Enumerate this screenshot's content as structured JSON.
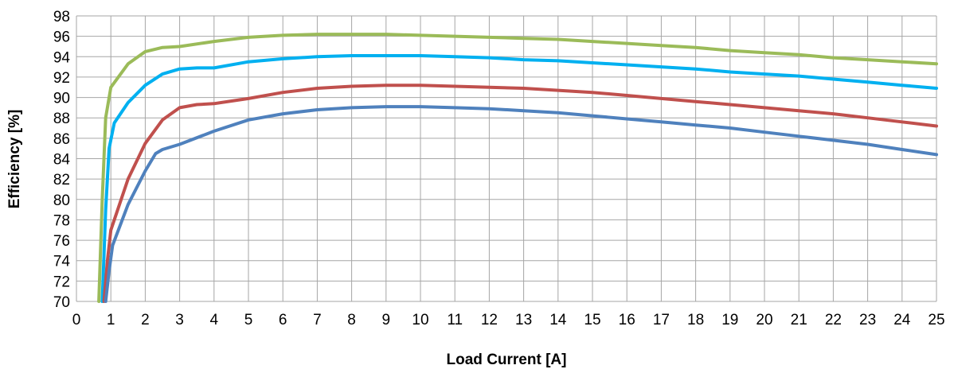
{
  "chart_data": {
    "type": "line",
    "title": "",
    "xlabel": "Load Current [A]",
    "ylabel": "Efficiency [%]",
    "xlim": [
      0,
      25
    ],
    "ylim": [
      70,
      98
    ],
    "x_ticks": [
      0,
      1,
      2,
      3,
      4,
      5,
      6,
      7,
      8,
      9,
      10,
      11,
      12,
      13,
      14,
      15,
      16,
      17,
      18,
      19,
      20,
      21,
      22,
      23,
      24,
      25
    ],
    "y_ticks": [
      70,
      72,
      74,
      76,
      78,
      80,
      82,
      84,
      86,
      88,
      90,
      92,
      94,
      96,
      98
    ],
    "grid": true,
    "legend": "none",
    "series": [
      {
        "color": "#9bbb59",
        "points": [
          [
            0.65,
            70
          ],
          [
            0.75,
            80
          ],
          [
            0.85,
            88
          ],
          [
            1,
            91
          ],
          [
            1.5,
            93.3
          ],
          [
            2,
            94.5
          ],
          [
            2.5,
            94.9
          ],
          [
            3,
            95
          ],
          [
            4,
            95.5
          ],
          [
            5,
            95.9
          ],
          [
            6,
            96.1
          ],
          [
            7,
            96.2
          ],
          [
            8,
            96.2
          ],
          [
            9,
            96.2
          ],
          [
            10,
            96.1
          ],
          [
            11,
            96
          ],
          [
            12,
            95.9
          ],
          [
            13,
            95.8
          ],
          [
            14,
            95.7
          ],
          [
            15,
            95.5
          ],
          [
            16,
            95.3
          ],
          [
            17,
            95.1
          ],
          [
            18,
            94.9
          ],
          [
            19,
            94.6
          ],
          [
            20,
            94.4
          ],
          [
            21,
            94.2
          ],
          [
            22,
            93.9
          ],
          [
            23,
            93.7
          ],
          [
            24,
            93.5
          ],
          [
            25,
            93.3
          ]
        ]
      },
      {
        "color": "#00b0f0",
        "points": [
          [
            0.75,
            70
          ],
          [
            0.85,
            79
          ],
          [
            0.95,
            85
          ],
          [
            1.1,
            87.5
          ],
          [
            1.5,
            89.5
          ],
          [
            2,
            91.2
          ],
          [
            2.5,
            92.3
          ],
          [
            3,
            92.8
          ],
          [
            3.5,
            92.9
          ],
          [
            4,
            92.9
          ],
          [
            5,
            93.5
          ],
          [
            6,
            93.8
          ],
          [
            7,
            94
          ],
          [
            8,
            94.1
          ],
          [
            9,
            94.1
          ],
          [
            10,
            94.1
          ],
          [
            11,
            94
          ],
          [
            12,
            93.9
          ],
          [
            13,
            93.7
          ],
          [
            14,
            93.6
          ],
          [
            15,
            93.4
          ],
          [
            16,
            93.2
          ],
          [
            17,
            93
          ],
          [
            18,
            92.8
          ],
          [
            19,
            92.5
          ],
          [
            20,
            92.3
          ],
          [
            21,
            92.1
          ],
          [
            22,
            91.8
          ],
          [
            23,
            91.5
          ],
          [
            24,
            91.2
          ],
          [
            25,
            90.9
          ]
        ]
      },
      {
        "color": "#c0504d",
        "points": [
          [
            0.8,
            70
          ],
          [
            0.9,
            74
          ],
          [
            1,
            77
          ],
          [
            1.5,
            82
          ],
          [
            2,
            85.5
          ],
          [
            2.5,
            87.8
          ],
          [
            3,
            89
          ],
          [
            3.5,
            89.3
          ],
          [
            4,
            89.4
          ],
          [
            5,
            89.9
          ],
          [
            6,
            90.5
          ],
          [
            7,
            90.9
          ],
          [
            8,
            91.1
          ],
          [
            9,
            91.2
          ],
          [
            10,
            91.2
          ],
          [
            11,
            91.1
          ],
          [
            12,
            91
          ],
          [
            13,
            90.9
          ],
          [
            14,
            90.7
          ],
          [
            15,
            90.5
          ],
          [
            16,
            90.2
          ],
          [
            17,
            89.9
          ],
          [
            18,
            89.6
          ],
          [
            19,
            89.3
          ],
          [
            20,
            89
          ],
          [
            21,
            88.7
          ],
          [
            22,
            88.4
          ],
          [
            23,
            88
          ],
          [
            24,
            87.6
          ],
          [
            25,
            87.2
          ]
        ]
      },
      {
        "color": "#4f81bd",
        "points": [
          [
            0.85,
            70
          ],
          [
            0.95,
            73
          ],
          [
            1.05,
            75.5
          ],
          [
            1.5,
            79.5
          ],
          [
            2,
            82.8
          ],
          [
            2.3,
            84.5
          ],
          [
            2.5,
            84.9
          ],
          [
            3,
            85.4
          ],
          [
            4,
            86.7
          ],
          [
            5,
            87.8
          ],
          [
            6,
            88.4
          ],
          [
            7,
            88.8
          ],
          [
            8,
            89
          ],
          [
            9,
            89.1
          ],
          [
            10,
            89.1
          ],
          [
            11,
            89
          ],
          [
            12,
            88.9
          ],
          [
            13,
            88.7
          ],
          [
            14,
            88.5
          ],
          [
            15,
            88.2
          ],
          [
            16,
            87.9
          ],
          [
            17,
            87.6
          ],
          [
            18,
            87.3
          ],
          [
            19,
            87
          ],
          [
            20,
            86.6
          ],
          [
            21,
            86.2
          ],
          [
            22,
            85.8
          ],
          [
            23,
            85.4
          ],
          [
            24,
            84.9
          ],
          [
            25,
            84.4
          ]
        ]
      }
    ]
  }
}
